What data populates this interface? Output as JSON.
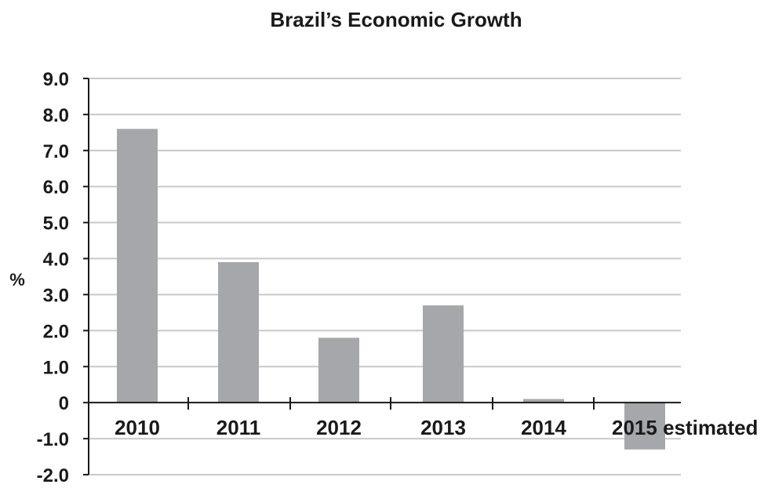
{
  "chart_data": {
    "type": "bar",
    "title": "Brazil’s Economic Growth",
    "xlabel": "",
    "ylabel": "%",
    "categories": [
      "2010",
      "2011",
      "2012",
      "2013",
      "2014",
      "2015 estimated"
    ],
    "values": [
      7.6,
      3.9,
      1.8,
      2.7,
      0.1,
      -1.3
    ],
    "ylim": [
      -2.0,
      9.0
    ],
    "yticks": [
      "9.0",
      "8.0",
      "7.0",
      "6.0",
      "5.0",
      "4.0",
      "3.0",
      "2.0",
      "1.0",
      "0",
      "-1.0",
      "-2.0"
    ],
    "ytick_values": [
      9,
      8,
      7,
      6,
      5,
      4,
      3,
      2,
      1,
      0,
      -1,
      -2
    ],
    "grid": true,
    "legend": "none",
    "bar_color": "#a6a7aa",
    "grid_color": "#c8c8c8",
    "axis_color": "#1a1a1a"
  }
}
